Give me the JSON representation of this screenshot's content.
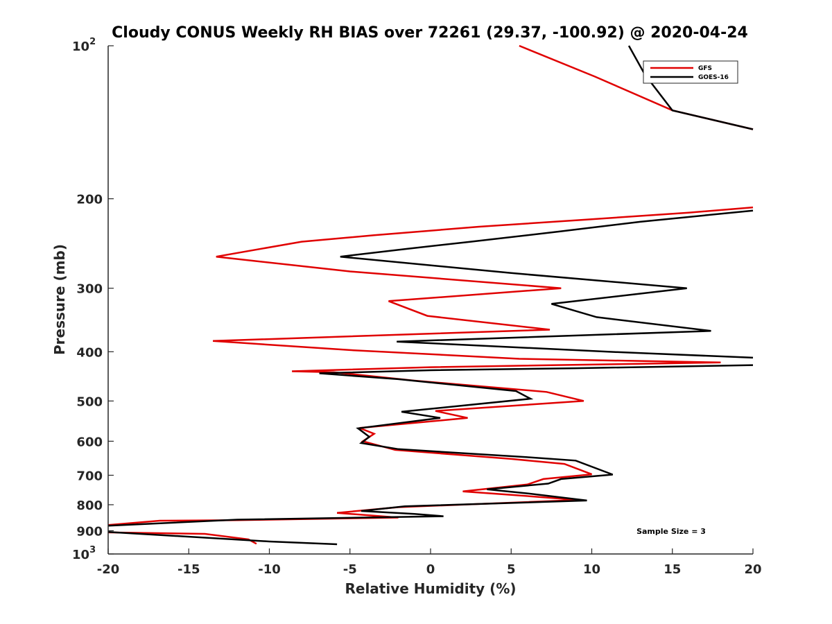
{
  "chart_data": {
    "type": "line",
    "title": "Cloudy CONUS Weekly RH BIAS over 72261 (29.37, -100.92) @ 2020-04-24",
    "xlabel": "Relative Humidity (%)",
    "ylabel": "Pressure (mb)",
    "xlim": [
      -20,
      20
    ],
    "ylim": [
      100,
      1000
    ],
    "yscale": "log",
    "yreversed": true,
    "xticks": [
      "-20",
      "-15",
      "-10",
      "-5",
      "0",
      "5",
      "10",
      "15",
      "20"
    ],
    "yticks": [
      {
        "value": 100,
        "label": "10",
        "sup": "2"
      },
      {
        "value": 200,
        "label": "200"
      },
      {
        "value": 300,
        "label": "300"
      },
      {
        "value": 400,
        "label": "400"
      },
      {
        "value": 500,
        "label": "500"
      },
      {
        "value": 600,
        "label": "600"
      },
      {
        "value": 700,
        "label": "700"
      },
      {
        "value": 800,
        "label": "800"
      },
      {
        "value": 900,
        "label": "900"
      },
      {
        "value": 1000,
        "label": "10",
        "sup": "3"
      }
    ],
    "legend_position": "top-right",
    "annotation": "Sample Size = 3",
    "series": [
      {
        "name": "GFS",
        "color": "#e00000",
        "points": [
          [
            5.5,
            100
          ],
          [
            10.2,
            115
          ],
          [
            15.0,
            134
          ],
          [
            20,
            146
          ],
          [
            null,
            null
          ],
          [
            20,
            208
          ],
          [
            16.0,
            213
          ],
          [
            9.5,
            220
          ],
          [
            3.0,
            227
          ],
          [
            -3.5,
            236
          ],
          [
            -8.0,
            243
          ],
          [
            -13.3,
            260
          ],
          [
            -5.0,
            278
          ],
          [
            8.1,
            300
          ],
          [
            -2.6,
            318
          ],
          [
            -0.2,
            340
          ],
          [
            7.4,
            362
          ],
          [
            -13.5,
            381
          ],
          [
            -5.0,
            397
          ],
          [
            5.5,
            413
          ],
          [
            18.0,
            420
          ],
          [
            0,
            429
          ],
          [
            -8.6,
            437
          ],
          [
            -6.0,
            439
          ],
          [
            -1.0,
            456
          ],
          [
            7.2,
            480
          ],
          [
            9.5,
            500
          ],
          [
            0.3,
            523
          ],
          [
            2.3,
            540
          ],
          [
            -4.4,
            565
          ],
          [
            -3.5,
            580
          ],
          [
            -4.2,
            600
          ],
          [
            -2.2,
            624
          ],
          [
            5.0,
            650
          ],
          [
            8.3,
            665
          ],
          [
            10.0,
            697
          ],
          [
            7.0,
            712
          ],
          [
            6.0,
            730
          ],
          [
            2.0,
            753
          ],
          [
            5.0,
            765
          ],
          [
            9.2,
            783
          ],
          [
            -2.0,
            809
          ],
          [
            -5.8,
            830
          ],
          [
            -2.0,
            848
          ],
          [
            -12.0,
            858
          ],
          [
            -16.8,
            860
          ],
          [
            -20,
            877
          ],
          [
            null,
            null
          ],
          [
            -20,
            907
          ],
          [
            -14.0,
            913
          ],
          [
            -11.3,
            936
          ],
          [
            -10.8,
            955
          ]
        ]
      },
      {
        "name": "GOES-16",
        "color": "#000000",
        "points": [
          [
            12.3,
            100
          ],
          [
            13.3,
            114
          ],
          [
            15.0,
            134
          ],
          [
            20,
            146
          ],
          [
            null,
            null
          ],
          [
            20,
            211
          ],
          [
            13.0,
            222
          ],
          [
            8.0,
            232
          ],
          [
            2.5,
            243
          ],
          [
            -1.5,
            251
          ],
          [
            -5.6,
            260
          ],
          [
            5.0,
            280
          ],
          [
            15.9,
            300
          ],
          [
            7.5,
            322
          ],
          [
            10.3,
            342
          ],
          [
            17.4,
            364
          ],
          [
            -2.1,
            382
          ],
          [
            11.0,
            400
          ],
          [
            20,
            411
          ],
          [
            null,
            null
          ],
          [
            20,
            425
          ],
          [
            9.0,
            431
          ],
          [
            0,
            435
          ],
          [
            -6.9,
            441
          ],
          [
            -2.0,
            453
          ],
          [
            5.3,
            478
          ],
          [
            6.2,
            495
          ],
          [
            -1.8,
            525
          ],
          [
            0.6,
            540
          ],
          [
            -4.5,
            566
          ],
          [
            -3.8,
            588
          ],
          [
            -4.3,
            605
          ],
          [
            -2.0,
            622
          ],
          [
            6.0,
            645
          ],
          [
            9.0,
            655
          ],
          [
            11.3,
            698
          ],
          [
            8.1,
            712
          ],
          [
            7.3,
            727
          ],
          [
            3.5,
            746
          ],
          [
            6.0,
            760
          ],
          [
            9.7,
            785
          ],
          [
            -1.6,
            806
          ],
          [
            -4.3,
            823
          ],
          [
            -1.0,
            834
          ],
          [
            0.8,
            843
          ],
          [
            -12.0,
            856
          ],
          [
            -20,
            880
          ],
          [
            null,
            null
          ],
          [
            -20,
            905
          ],
          [
            -10.0,
            945
          ],
          [
            -5.8,
            957
          ]
        ]
      }
    ]
  }
}
